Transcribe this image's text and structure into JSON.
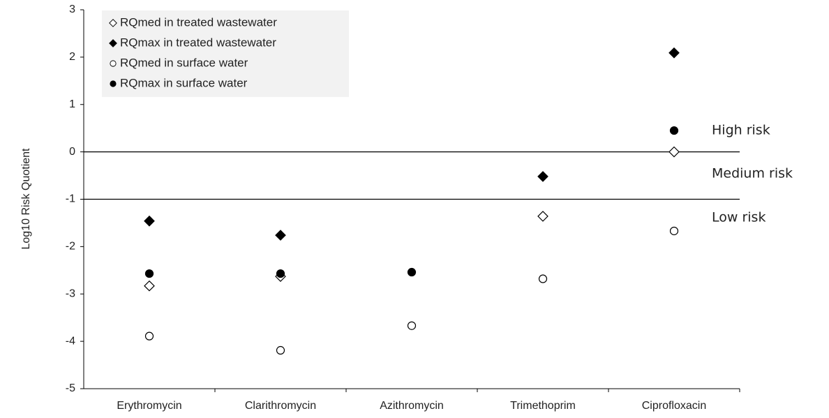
{
  "chart_data": {
    "type": "scatter",
    "y_label": "Log10 Risk Quotient",
    "categories": [
      "Erythromycin",
      "Clarithromycin",
      "Azithromycin",
      "Trimethoprim",
      "Ciprofloxacin"
    ],
    "series": [
      {
        "name": "RQmed in treated wastewater",
        "color": "#000000",
        "marker": "diamond",
        "filled": false,
        "values": [
          -2.83,
          -2.63,
          null,
          -1.36,
          0.0
        ]
      },
      {
        "name": "RQmax in treated wastewater",
        "color": "#000000",
        "marker": "diamond",
        "filled": true,
        "values": [
          -1.46,
          -1.76,
          null,
          -0.52,
          2.09
        ]
      },
      {
        "name": "RQmed in surface water",
        "color": "#000000",
        "marker": "circle",
        "filled": false,
        "values": [
          -3.89,
          -4.19,
          -3.67,
          -2.68,
          -1.67
        ]
      },
      {
        "name": "RQmax in surface water",
        "color": "#000000",
        "marker": "circle",
        "filled": true,
        "values": [
          -2.57,
          -2.57,
          -2.54,
          null,
          0.45
        ]
      }
    ],
    "reference_lines": [
      0,
      -1
    ],
    "annotations": [
      "High risk",
      "Medium risk",
      "Low risk"
    ],
    "ylim": [
      -5,
      3
    ],
    "yticks": [
      -5,
      -4,
      -3,
      -2,
      -1,
      0,
      1,
      2,
      3
    ],
    "legend": "upper left"
  }
}
